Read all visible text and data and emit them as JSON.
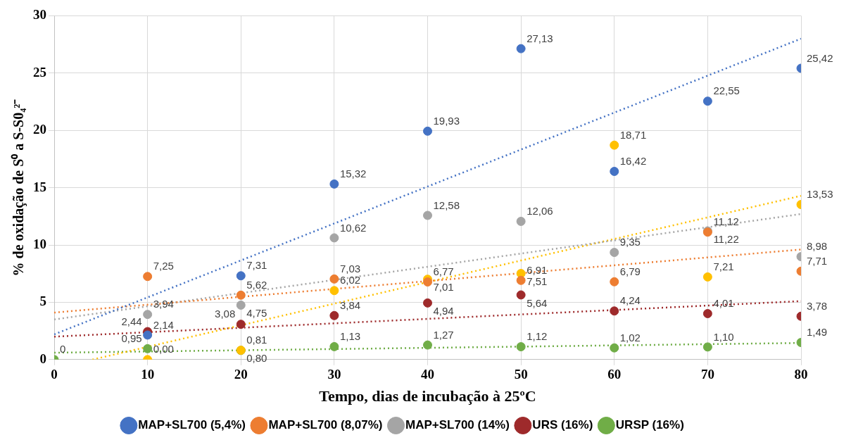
{
  "chart_data": {
    "type": "scatter",
    "xlabel": "Tempo, dias de incubação à 25ºC",
    "ylabel": "% de oxidação de S⁰ a S-S0₄²⁻",
    "x": [
      0,
      10,
      20,
      30,
      40,
      50,
      60,
      70,
      80
    ],
    "xlim": [
      0,
      80
    ],
    "xticks": [
      0,
      10,
      20,
      30,
      40,
      50,
      60,
      70,
      80
    ],
    "ylim": [
      0,
      30
    ],
    "yticks": [
      0,
      5,
      10,
      15,
      20,
      25,
      30
    ],
    "grid": true,
    "legend": "bottom",
    "marker": "circle",
    "series": [
      {
        "name": "MAP+SL700 (5,4%)",
        "color": "#4472c4",
        "values": [
          null,
          2.14,
          7.31,
          15.32,
          19.93,
          27.13,
          16.42,
          22.55,
          25.42
        ],
        "value_labels": [
          null,
          "2,14",
          "7,31",
          "15,32",
          "19,93",
          "27,13",
          "16,42",
          "22,55",
          "25,42"
        ]
      },
      {
        "name": "MAP+SL700 (8,07%)",
        "color": "#ed7d31",
        "values": [
          null,
          7.25,
          5.62,
          7.03,
          6.77,
          6.91,
          6.79,
          11.12,
          7.71
        ],
        "value_labels": [
          null,
          "7,25",
          "5,62",
          "7,03",
          "6,77",
          "6,91",
          "6,79",
          "11,12",
          "7,71"
        ]
      },
      {
        "name": "MAP+SL700 (14%)",
        "color": "#a5a5a5",
        "values": [
          null,
          3.94,
          4.75,
          10.62,
          12.58,
          12.06,
          9.35,
          11.22,
          8.98
        ],
        "value_labels": [
          null,
          "3,94",
          "4,75",
          "10,62",
          "12,58",
          "12,06",
          "9,35",
          "11,22",
          "8,98"
        ]
      },
      {
        "color": "#ffc000",
        "values": [
          null,
          0,
          0.81,
          6.02,
          7.01,
          7.51,
          18.71,
          7.21,
          13.53
        ],
        "value_labels": [
          null,
          "0,00",
          "0,81",
          "6,02",
          "7,01",
          "7,51",
          "18,71",
          "7,21",
          "13,53"
        ]
      },
      {
        "name": "URS (16%)",
        "color": "#9e2a2b",
        "values": [
          null,
          2.44,
          3.08,
          3.84,
          4.94,
          5.64,
          4.24,
          4.01,
          3.78
        ],
        "value_labels": [
          null,
          "2,44",
          "3,08",
          "3,84",
          "4,94",
          "5,64",
          "4,24",
          "4,01",
          "3,78"
        ]
      },
      {
        "name": "URSP (16%)",
        "color": "#70ad47",
        "values": [
          0,
          0.95,
          0.8,
          1.13,
          1.27,
          1.12,
          1.02,
          1.1,
          1.49
        ],
        "value_labels": [
          "0",
          "0,95",
          "0,80",
          "1,13",
          "1,27",
          "1,12",
          "1,02",
          "1,10",
          "1,49"
        ]
      },
      {
        "type": "line",
        "line_style": "dotted",
        "marker": "none",
        "color": "#4472c4",
        "x": [
          0,
          80
        ],
        "values": [
          2.2,
          28
        ]
      },
      {
        "type": "line",
        "line_style": "dotted",
        "marker": "none",
        "color": "#ed7d31",
        "x": [
          0,
          80
        ],
        "values": [
          4.1,
          9.6
        ]
      },
      {
        "type": "line",
        "line_style": "dotted",
        "marker": "none",
        "color": "#a5a5a5",
        "x": [
          0,
          80
        ],
        "values": [
          3.5,
          12.7
        ]
      },
      {
        "type": "line",
        "line_style": "dotted",
        "marker": "none",
        "color": "#ffc000",
        "x": [
          4.1,
          80
        ],
        "values": [
          0,
          14.29
        ]
      },
      {
        "type": "line",
        "line_style": "dotted",
        "marker": "none",
        "color": "#9e2a2b",
        "x": [
          0,
          80
        ],
        "values": [
          2,
          5.1
        ]
      },
      {
        "type": "line",
        "line_style": "dotted",
        "marker": "none",
        "color": "#70ad47",
        "x": [
          0,
          80
        ],
        "values": [
          0.6,
          1.45
        ]
      }
    ]
  }
}
